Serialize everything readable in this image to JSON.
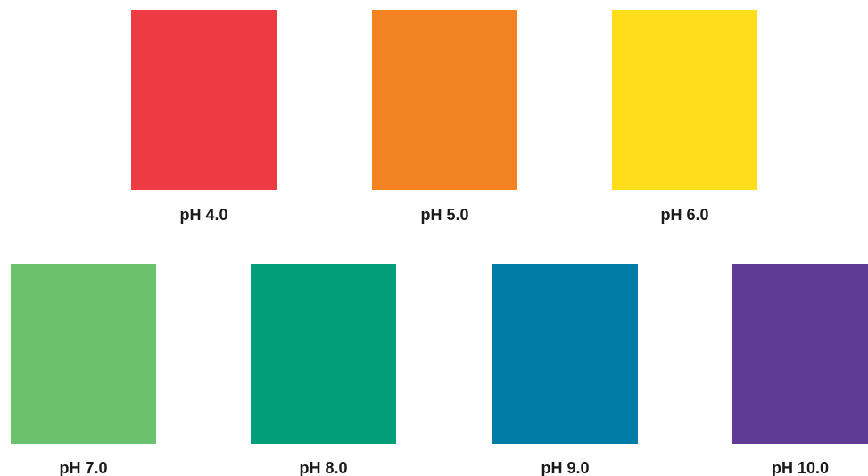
{
  "swatches": [
    {
      "label": "pH 4.0",
      "color": "#ee3a43"
    },
    {
      "label": "pH 5.0",
      "color": "#f38321"
    },
    {
      "label": "pH 6.0",
      "color": "#fedd1a"
    },
    {
      "label": "pH 7.0",
      "color": "#6cc26c"
    },
    {
      "label": "pH 8.0",
      "color": "#039d79"
    },
    {
      "label": "pH 9.0",
      "color": "#007ca6"
    },
    {
      "label": "pH 10.0",
      "color": "#5f3b96"
    }
  ]
}
